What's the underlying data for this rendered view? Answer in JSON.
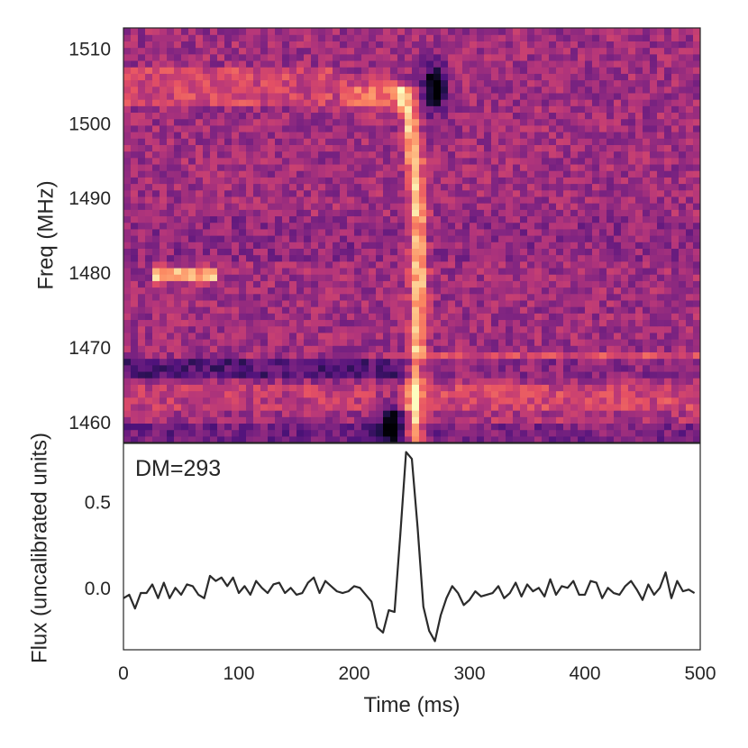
{
  "chart_data": [
    {
      "type": "heatmap",
      "ylabel": "Freq (MHz)",
      "ylim": [
        1457.5,
        1513.0
      ],
      "yticks": [
        1510,
        1500,
        1490,
        1480,
        1470,
        1460
      ],
      "xlim": [
        0,
        500
      ],
      "colormap": "magma",
      "features": [
        {
          "kind": "dispersed_sweep",
          "freq": [
            1504.5,
            1499.0,
            1490.0,
            1480.0,
            1470.0,
            1466.0
          ],
          "time": [
            245,
            250,
            255,
            256,
            255,
            253
          ]
        },
        {
          "kind": "bright_blob",
          "time": [
            25,
            80
          ],
          "freq": 1480.0
        },
        {
          "kind": "dark_spot",
          "time": 270,
          "freq": 1505.0
        },
        {
          "kind": "dark_spot",
          "time": 232,
          "freq": 1460.0
        }
      ]
    },
    {
      "type": "line",
      "annotation": "DM=293",
      "xlabel": "Time (ms)",
      "ylabel": "Flux (uncalibrated units)",
      "xlim": [
        0,
        500
      ],
      "ylim": [
        -0.35,
        0.85
      ],
      "xticks": [
        0,
        100,
        200,
        300,
        400,
        500
      ],
      "yticks": [
        0.0,
        0.5
      ],
      "series": [
        {
          "x": [
            0,
            5,
            10,
            15,
            20,
            25,
            30,
            35,
            40,
            45,
            50,
            55,
            60,
            65,
            70,
            75,
            80,
            85,
            90,
            95,
            100,
            105,
            110,
            115,
            120,
            125,
            130,
            135,
            140,
            145,
            150,
            155,
            160,
            165,
            170,
            175,
            180,
            185,
            190,
            195,
            200,
            205,
            210,
            215,
            220,
            225,
            230,
            235,
            240,
            245,
            250,
            255,
            260,
            265,
            270,
            275,
            280,
            285,
            290,
            295,
            300,
            305,
            310,
            315,
            320,
            325,
            330,
            335,
            340,
            345,
            350,
            355,
            360,
            365,
            370,
            375,
            380,
            385,
            390,
            395,
            400,
            405,
            410,
            415,
            420,
            425,
            430,
            435,
            440,
            445,
            450,
            455,
            460,
            465,
            470,
            475,
            480,
            485,
            490,
            495
          ],
          "values": [
            -0.05,
            -0.03,
            -0.11,
            -0.02,
            -0.02,
            0.03,
            -0.05,
            0.04,
            -0.05,
            0.01,
            -0.03,
            0.03,
            0.02,
            -0.03,
            -0.05,
            0.08,
            0.05,
            0.07,
            0.02,
            0.07,
            -0.02,
            0.02,
            -0.03,
            0.05,
            0.01,
            -0.02,
            0.03,
            0.04,
            -0.02,
            0.01,
            -0.03,
            -0.02,
            0.04,
            0.07,
            -0.02,
            0.05,
            0.02,
            -0.01,
            -0.02,
            -0.01,
            0.02,
            0.01,
            -0.03,
            -0.07,
            -0.22,
            -0.25,
            -0.12,
            -0.13,
            0.32,
            0.8,
            0.76,
            0.36,
            -0.1,
            -0.24,
            -0.3,
            -0.15,
            -0.05,
            0.02,
            -0.02,
            -0.09,
            -0.06,
            -0.01,
            -0.04,
            -0.03,
            -0.02,
            0.02,
            -0.05,
            -0.02,
            0.04,
            -0.04,
            0.03,
            -0.01,
            0.01,
            -0.04,
            0.06,
            -0.03,
            0.02,
            0.01,
            0.05,
            -0.03,
            -0.03,
            0.05,
            0.04,
            -0.05,
            0.01,
            -0.02,
            -0.03,
            0.02,
            0.05,
            0.0,
            -0.06,
            0.03,
            -0.03,
            0.01,
            0.1,
            -0.05,
            0.05,
            -0.01,
            0.0,
            -0.02
          ]
        }
      ]
    }
  ]
}
